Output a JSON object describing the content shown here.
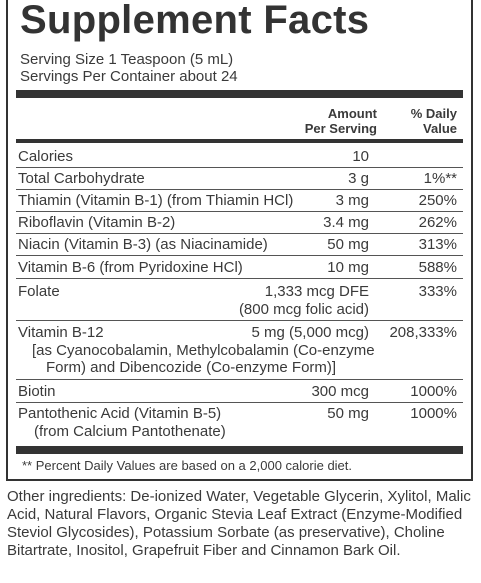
{
  "title": "Supplement Facts",
  "serving_size": "Serving Size 1 Teaspoon (5 mL)",
  "servings_per_container": "Servings Per Container about 24",
  "header": {
    "amount_line1": "Amount",
    "amount_line2": "Per Serving",
    "dv_line1": "% Daily",
    "dv_line2": "Value"
  },
  "rows": [
    {
      "name": "Calories",
      "amount": "10",
      "dv": ""
    },
    {
      "name": "Total Carbohydrate",
      "amount": "3 g",
      "dv": "1%**"
    },
    {
      "name": "Thiamin (Vitamin B-1) (from Thiamin HCl)",
      "amount": "3 mg",
      "dv": "250%"
    },
    {
      "name": "Riboflavin (Vitamin B-2)",
      "amount": "3.4 mg",
      "dv": "262%"
    },
    {
      "name": "Niacin (Vitamin B-3) (as Niacinamide)",
      "amount": "50 mg",
      "dv": "313%"
    },
    {
      "name": "Vitamin B-6 (from Pyridoxine HCl)",
      "amount": "10 mg",
      "dv": "588%"
    },
    {
      "name": "Folate",
      "amount": "1,333 mcg DFE",
      "amount_sub": "(800 mcg folic acid)",
      "dv": "333%"
    },
    {
      "name": "Vitamin B-12",
      "amount": "5 mg (5,000 mcg)",
      "dv": "208,333%",
      "sub1": "[as Cyanocobalamin, Methylcobalamin (Co-enzyme",
      "sub2": "Form) and Dibencozide (Co-enzyme Form)]"
    },
    {
      "name": "Biotin",
      "amount": "300 mcg",
      "dv": "1000%"
    },
    {
      "name": "Pantothenic Acid (Vitamin B-5)",
      "amount": "50 mg",
      "dv": "1000%",
      "sub1": "(from Calcium Pantothenate)"
    }
  ],
  "footnote": "** Percent Daily Values are based on a 2,000 calorie diet.",
  "other_ingredients": "Other ingredients: De-ionized Water, Vegetable Glycerin, Xylitol, Malic Acid, Natural Flavors, Organic Stevia Leaf Extract (Enzyme-Modified Steviol Glycosides), Potassium Sorbate (as preservative), Choline Bitartrate, Inositol, Grapefruit Fiber and Cinnamon Bark Oil."
}
